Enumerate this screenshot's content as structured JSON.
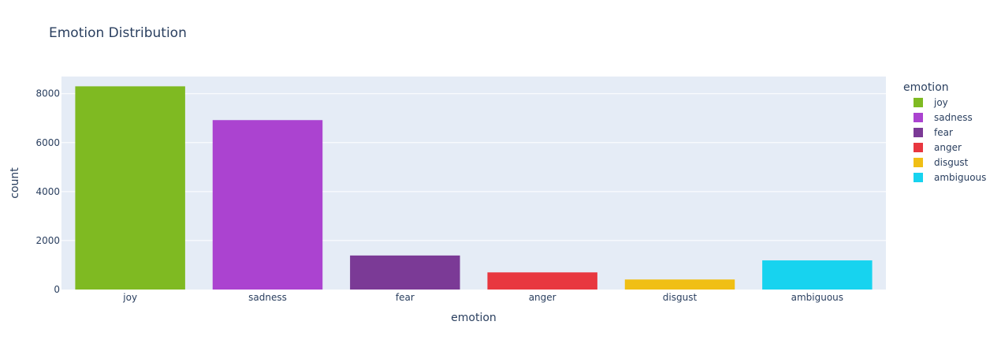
{
  "chart_data": {
    "type": "bar",
    "title": "Emotion Distribution",
    "xlabel": "emotion",
    "ylabel": "count",
    "categories": [
      "joy",
      "sadness",
      "fear",
      "anger",
      "disgust",
      "ambiguous"
    ],
    "values": [
      8300,
      6920,
      1390,
      700,
      410,
      1190
    ],
    "colors": [
      "#7fba22",
      "#ab43d0",
      "#7b3a96",
      "#e8373f",
      "#f0bf15",
      "#17d3ef"
    ],
    "ylim": [
      0,
      8700
    ],
    "yticks": [
      0,
      2000,
      4000,
      6000,
      8000
    ],
    "ytick_labels": [
      "0",
      "2000",
      "4000",
      "6000",
      "8000"
    ],
    "grid": true,
    "legend": {
      "title": "emotion",
      "placement": "right",
      "entries": [
        "joy",
        "sadness",
        "fear",
        "anger",
        "disgust",
        "ambiguous"
      ]
    }
  }
}
